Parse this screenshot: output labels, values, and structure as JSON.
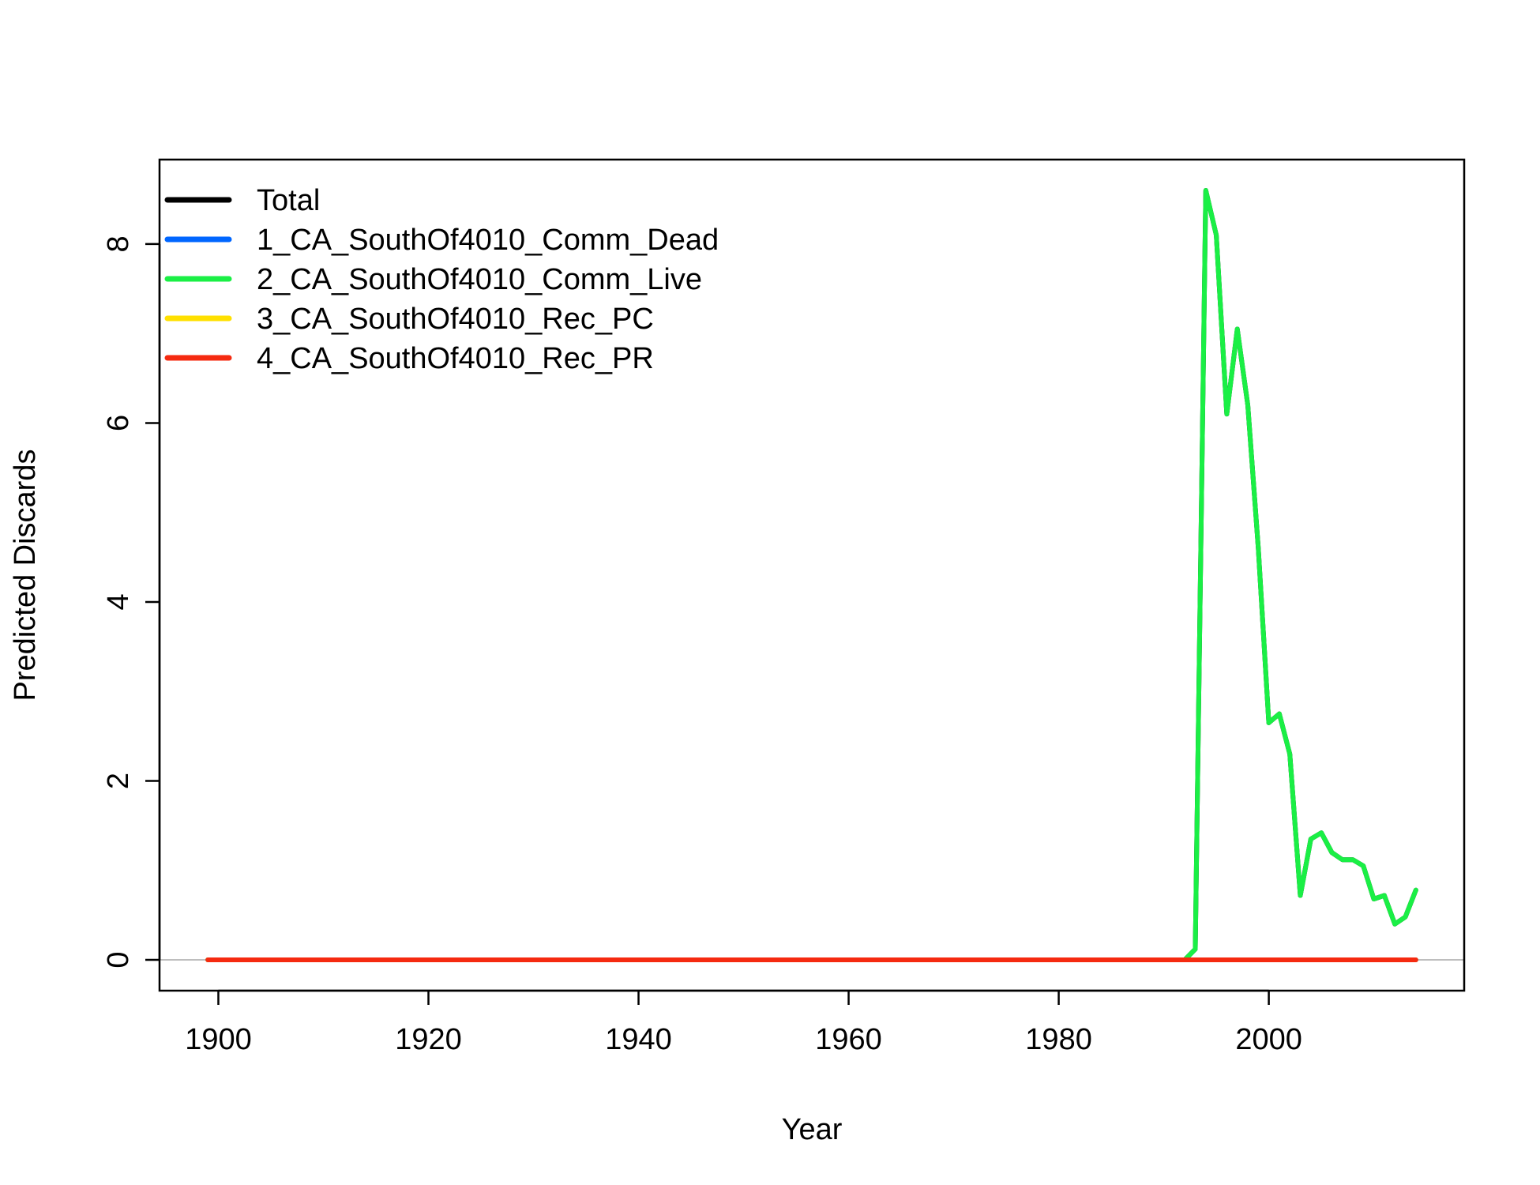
{
  "chart_data": {
    "type": "line",
    "xlabel": "Year",
    "ylabel": "Predicted Discards",
    "xlim": [
      1894.4,
      2018.6
    ],
    "ylim": [
      -0.344,
      8.944
    ],
    "x_ticks": [
      1900,
      1920,
      1940,
      1960,
      1980,
      2000
    ],
    "y_ticks": [
      0,
      2,
      4,
      6,
      8
    ],
    "reference_line": {
      "y": 0,
      "color": "#bebebe"
    },
    "grid": false,
    "legend_placement": "top-left",
    "x": [
      1899,
      1900,
      1901,
      1902,
      1903,
      1904,
      1905,
      1906,
      1907,
      1908,
      1909,
      1910,
      1911,
      1912,
      1913,
      1914,
      1915,
      1916,
      1917,
      1918,
      1919,
      1920,
      1921,
      1922,
      1923,
      1924,
      1925,
      1926,
      1927,
      1928,
      1929,
      1930,
      1931,
      1932,
      1933,
      1934,
      1935,
      1936,
      1937,
      1938,
      1939,
      1940,
      1941,
      1942,
      1943,
      1944,
      1945,
      1946,
      1947,
      1948,
      1949,
      1950,
      1951,
      1952,
      1953,
      1954,
      1955,
      1956,
      1957,
      1958,
      1959,
      1960,
      1961,
      1962,
      1963,
      1964,
      1965,
      1966,
      1967,
      1968,
      1969,
      1970,
      1971,
      1972,
      1973,
      1974,
      1975,
      1976,
      1977,
      1978,
      1979,
      1980,
      1981,
      1982,
      1983,
      1984,
      1985,
      1986,
      1987,
      1988,
      1989,
      1990,
      1991,
      1992,
      1993,
      1994,
      1995,
      1996,
      1997,
      1998,
      1999,
      2000,
      2001,
      2002,
      2003,
      2004,
      2005,
      2006,
      2007,
      2008,
      2009,
      2010,
      2011,
      2012,
      2013,
      2014
    ],
    "series": [
      {
        "name": "Total",
        "color": "#000000",
        "values": [
          0,
          0,
          0,
          0,
          0,
          0,
          0,
          0,
          0,
          0,
          0,
          0,
          0,
          0,
          0,
          0,
          0,
          0,
          0,
          0,
          0,
          0,
          0,
          0,
          0,
          0,
          0,
          0,
          0,
          0,
          0,
          0,
          0,
          0,
          0,
          0,
          0,
          0,
          0,
          0,
          0,
          0,
          0,
          0,
          0,
          0,
          0,
          0,
          0,
          0,
          0,
          0,
          0,
          0,
          0,
          0,
          0,
          0,
          0,
          0,
          0,
          0,
          0,
          0,
          0,
          0,
          0,
          0,
          0,
          0,
          0,
          0,
          0,
          0,
          0,
          0,
          0,
          0,
          0,
          0,
          0,
          0,
          0,
          0,
          0,
          0,
          0,
          0,
          0,
          0,
          0,
          0,
          0,
          0,
          0.12,
          8.6,
          8.1,
          6.1,
          7.05,
          6.2,
          4.6,
          2.65,
          2.75,
          2.3,
          0.72,
          1.35,
          1.42,
          1.2,
          1.12,
          1.12,
          1.05,
          0.68,
          0.72,
          0.4,
          0.48,
          0.78
        ]
      },
      {
        "name": "1_CA_SouthOf4010_Comm_Dead",
        "color": "#0066ff",
        "values": [
          0,
          0,
          0,
          0,
          0,
          0,
          0,
          0,
          0,
          0,
          0,
          0,
          0,
          0,
          0,
          0,
          0,
          0,
          0,
          0,
          0,
          0,
          0,
          0,
          0,
          0,
          0,
          0,
          0,
          0,
          0,
          0,
          0,
          0,
          0,
          0,
          0,
          0,
          0,
          0,
          0,
          0,
          0,
          0,
          0,
          0,
          0,
          0,
          0,
          0,
          0,
          0,
          0,
          0,
          0,
          0,
          0,
          0,
          0,
          0,
          0,
          0,
          0,
          0,
          0,
          0,
          0,
          0,
          0,
          0,
          0,
          0,
          0,
          0,
          0,
          0,
          0,
          0,
          0,
          0,
          0,
          0,
          0,
          0,
          0,
          0,
          0,
          0,
          0,
          0,
          0,
          0,
          0,
          0,
          0,
          0,
          0,
          0,
          0,
          0,
          0,
          0,
          0,
          0,
          0,
          0,
          0,
          0,
          0,
          0,
          0,
          0,
          0,
          0,
          0,
          0
        ]
      },
      {
        "name": "2_CA_SouthOf4010_Comm_Live",
        "color": "#1aef45",
        "values": [
          0,
          0,
          0,
          0,
          0,
          0,
          0,
          0,
          0,
          0,
          0,
          0,
          0,
          0,
          0,
          0,
          0,
          0,
          0,
          0,
          0,
          0,
          0,
          0,
          0,
          0,
          0,
          0,
          0,
          0,
          0,
          0,
          0,
          0,
          0,
          0,
          0,
          0,
          0,
          0,
          0,
          0,
          0,
          0,
          0,
          0,
          0,
          0,
          0,
          0,
          0,
          0,
          0,
          0,
          0,
          0,
          0,
          0,
          0,
          0,
          0,
          0,
          0,
          0,
          0,
          0,
          0,
          0,
          0,
          0,
          0,
          0,
          0,
          0,
          0,
          0,
          0,
          0,
          0,
          0,
          0,
          0,
          0,
          0,
          0,
          0,
          0,
          0,
          0,
          0,
          0,
          0,
          0,
          0,
          0.12,
          8.6,
          8.1,
          6.1,
          7.05,
          6.2,
          4.6,
          2.65,
          2.75,
          2.3,
          0.72,
          1.35,
          1.42,
          1.2,
          1.12,
          1.12,
          1.05,
          0.68,
          0.72,
          0.4,
          0.48,
          0.78
        ]
      },
      {
        "name": "3_CA_SouthOf4010_Rec_PC",
        "color": "#ffe000",
        "values": [
          0,
          0,
          0,
          0,
          0,
          0,
          0,
          0,
          0,
          0,
          0,
          0,
          0,
          0,
          0,
          0,
          0,
          0,
          0,
          0,
          0,
          0,
          0,
          0,
          0,
          0,
          0,
          0,
          0,
          0,
          0,
          0,
          0,
          0,
          0,
          0,
          0,
          0,
          0,
          0,
          0,
          0,
          0,
          0,
          0,
          0,
          0,
          0,
          0,
          0,
          0,
          0,
          0,
          0,
          0,
          0,
          0,
          0,
          0,
          0,
          0,
          0,
          0,
          0,
          0,
          0,
          0,
          0,
          0,
          0,
          0,
          0,
          0,
          0,
          0,
          0,
          0,
          0,
          0,
          0,
          0,
          0,
          0,
          0,
          0,
          0,
          0,
          0,
          0,
          0,
          0,
          0,
          0,
          0,
          0,
          0,
          0,
          0,
          0,
          0,
          0,
          0,
          0,
          0,
          0,
          0,
          0,
          0,
          0,
          0,
          0,
          0,
          0,
          0,
          0,
          0
        ]
      },
      {
        "name": "4_CA_SouthOf4010_Rec_PR",
        "color": "#f52a10",
        "values": [
          0,
          0,
          0,
          0,
          0,
          0,
          0,
          0,
          0,
          0,
          0,
          0,
          0,
          0,
          0,
          0,
          0,
          0,
          0,
          0,
          0,
          0,
          0,
          0,
          0,
          0,
          0,
          0,
          0,
          0,
          0,
          0,
          0,
          0,
          0,
          0,
          0,
          0,
          0,
          0,
          0,
          0,
          0,
          0,
          0,
          0,
          0,
          0,
          0,
          0,
          0,
          0,
          0,
          0,
          0,
          0,
          0,
          0,
          0,
          0,
          0,
          0,
          0,
          0,
          0,
          0,
          0,
          0,
          0,
          0,
          0,
          0,
          0,
          0,
          0,
          0,
          0,
          0,
          0,
          0,
          0,
          0,
          0,
          0,
          0,
          0,
          0,
          0,
          0,
          0,
          0,
          0,
          0,
          0,
          0,
          0,
          0,
          0,
          0,
          0,
          0,
          0,
          0,
          0,
          0,
          0,
          0,
          0,
          0,
          0,
          0,
          0,
          0,
          0,
          0,
          0
        ]
      }
    ]
  }
}
